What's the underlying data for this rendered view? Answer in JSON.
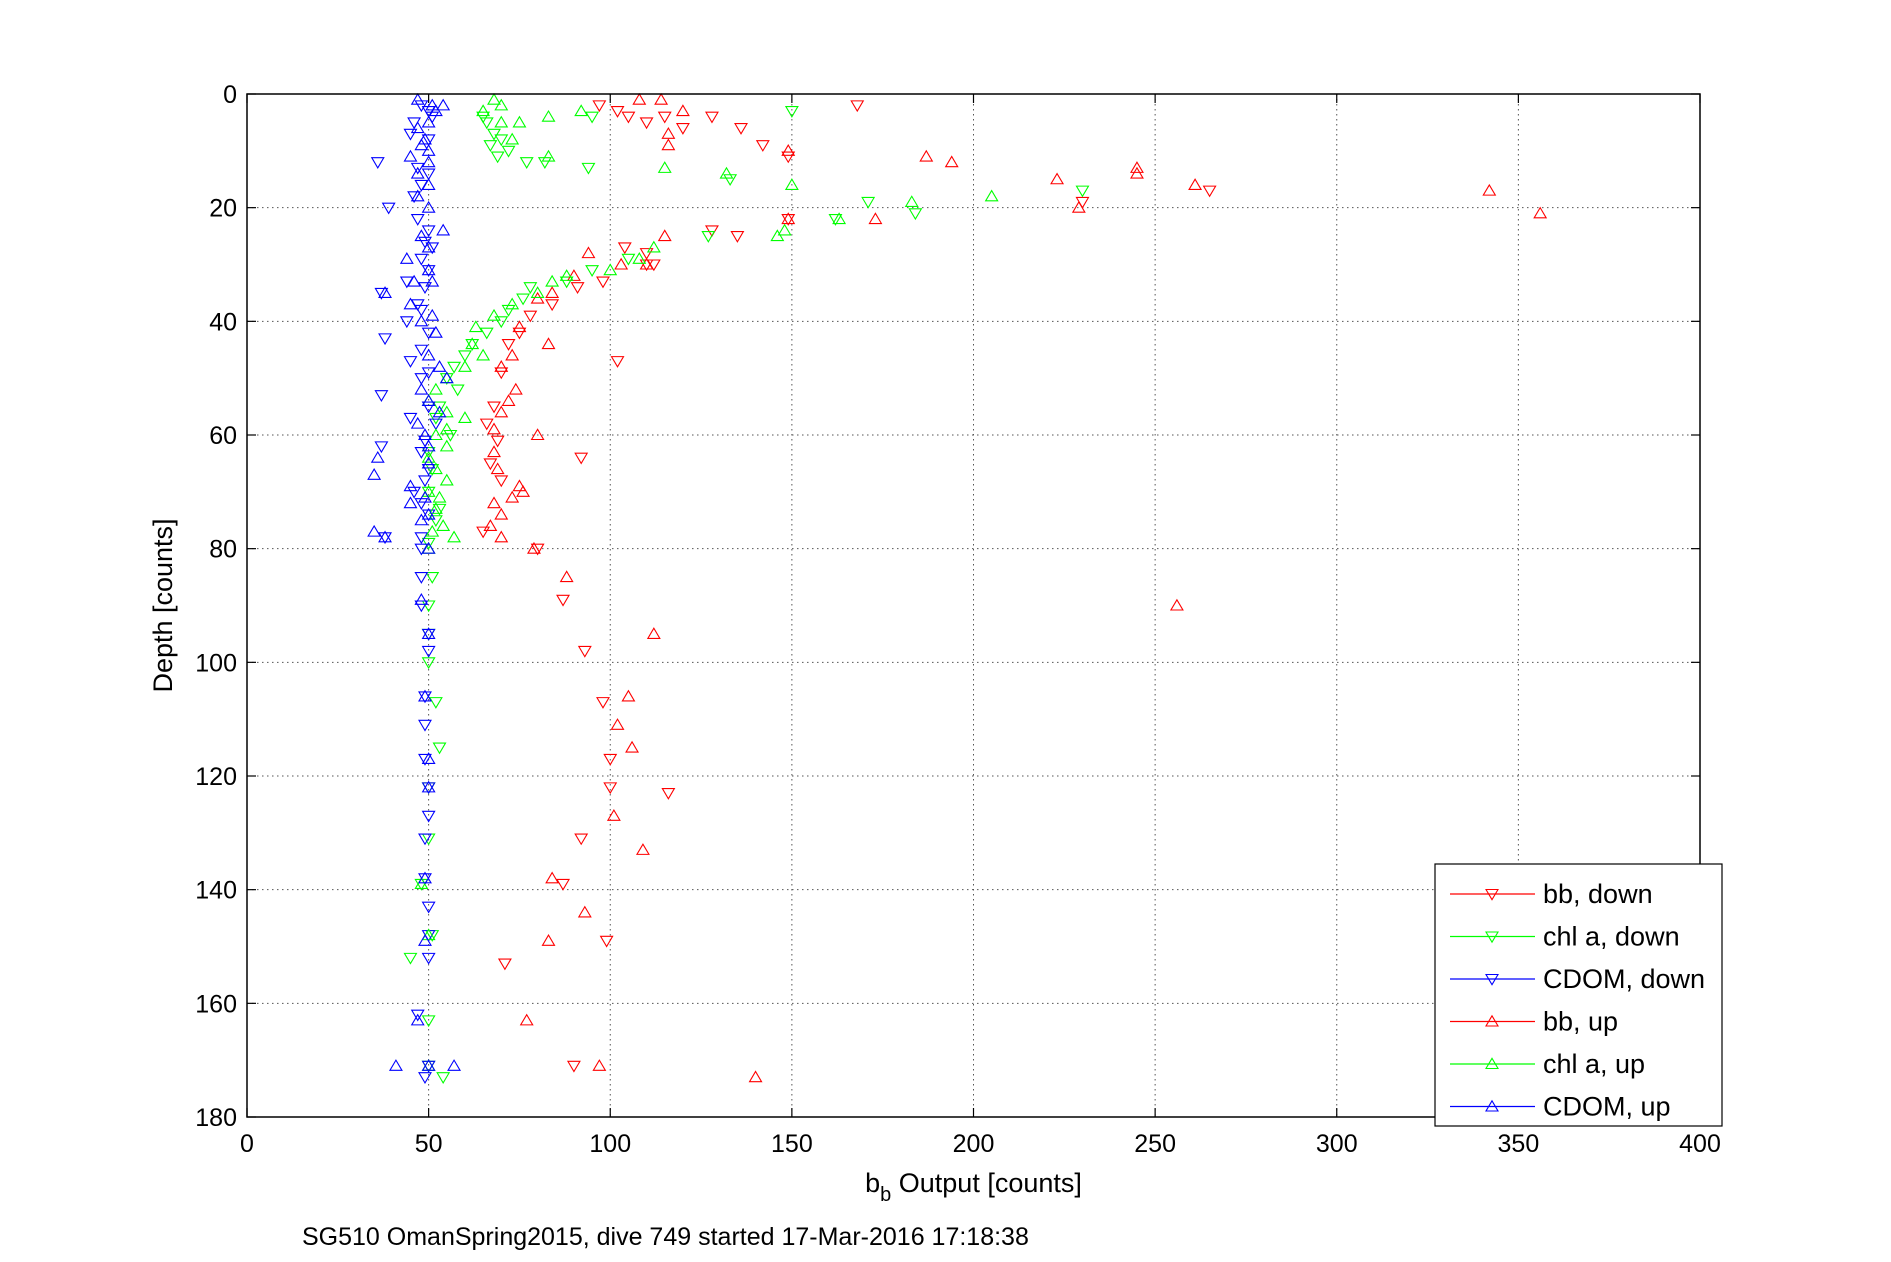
{
  "chart_data": {
    "type": "scatter",
    "title": "",
    "xlabel": "b",
    "xlabel_sub": "b",
    "xlabel_rest": " Output [counts]",
    "ylabel": "Depth [counts]",
    "caption": "SG510 OmanSpring2015, dive 749 started 17-Mar-2016 17:18:38",
    "xlim": [
      0,
      400
    ],
    "ylim": [
      0,
      180
    ],
    "y_reversed": true,
    "grid": true,
    "legend_position": "bottom-right",
    "x_ticks": [
      "0",
      "50",
      "100",
      "150",
      "200",
      "250",
      "300",
      "350",
      "400"
    ],
    "y_ticks": [
      "0",
      "20",
      "40",
      "60",
      "80",
      "100",
      "120",
      "140",
      "160",
      "180"
    ],
    "series": [
      {
        "name": "bb, down",
        "color": "#ff0000",
        "marker": "triangle-down",
        "points": [
          [
            97,
            2
          ],
          [
            102,
            3
          ],
          [
            105,
            4
          ],
          [
            110,
            5
          ],
          [
            115,
            4
          ],
          [
            120,
            6
          ],
          [
            128,
            4
          ],
          [
            136,
            6
          ],
          [
            142,
            9
          ],
          [
            149,
            11
          ],
          [
            168,
            2
          ],
          [
            110,
            28
          ],
          [
            104,
            27
          ],
          [
            112,
            30
          ],
          [
            98,
            33
          ],
          [
            91,
            34
          ],
          [
            84,
            37
          ],
          [
            78,
            39
          ],
          [
            75,
            42
          ],
          [
            72,
            44
          ],
          [
            70,
            49
          ],
          [
            68,
            55
          ],
          [
            66,
            58
          ],
          [
            69,
            61
          ],
          [
            67,
            65
          ],
          [
            70,
            68
          ],
          [
            65,
            77
          ],
          [
            80,
            80
          ],
          [
            92,
            64
          ],
          [
            102,
            47
          ],
          [
            98,
            107
          ],
          [
            100,
            117
          ],
          [
            100,
            122
          ],
          [
            92,
            131
          ],
          [
            87,
            139
          ],
          [
            93,
            98
          ],
          [
            87,
            89
          ],
          [
            71,
            153
          ],
          [
            90,
            171
          ],
          [
            99,
            149
          ],
          [
            116,
            123
          ],
          [
            135,
            25
          ],
          [
            128,
            24
          ],
          [
            149,
            22
          ],
          [
            230,
            19
          ],
          [
            265,
            17
          ],
          [
            110,
            30
          ]
        ]
      },
      {
        "name": "chl a, down",
        "color": "#00ff00",
        "marker": "triangle-down",
        "points": [
          [
            65,
            4
          ],
          [
            66,
            5
          ],
          [
            68,
            7
          ],
          [
            70,
            8
          ],
          [
            67,
            9
          ],
          [
            72,
            10
          ],
          [
            69,
            11
          ],
          [
            77,
            12
          ],
          [
            150,
            3
          ],
          [
            95,
            4
          ],
          [
            82,
            12
          ],
          [
            94,
            13
          ],
          [
            133,
            15
          ],
          [
            230,
            17
          ],
          [
            171,
            19
          ],
          [
            162,
            22
          ],
          [
            184,
            21
          ],
          [
            127,
            25
          ],
          [
            105,
            29
          ],
          [
            95,
            31
          ],
          [
            88,
            33
          ],
          [
            78,
            34
          ],
          [
            76,
            36
          ],
          [
            72,
            38
          ],
          [
            70,
            40
          ],
          [
            66,
            42
          ],
          [
            62,
            44
          ],
          [
            60,
            46
          ],
          [
            57,
            48
          ],
          [
            55,
            50
          ],
          [
            58,
            52
          ],
          [
            53,
            55
          ],
          [
            52,
            57
          ],
          [
            56,
            60
          ],
          [
            50,
            63
          ],
          [
            51,
            66
          ],
          [
            50,
            70
          ],
          [
            53,
            73
          ],
          [
            52,
            75
          ],
          [
            50,
            79
          ],
          [
            51,
            85
          ],
          [
            50,
            90
          ],
          [
            50,
            95
          ],
          [
            50,
            100
          ],
          [
            52,
            107
          ],
          [
            53,
            115
          ],
          [
            50,
            122
          ],
          [
            50,
            131
          ],
          [
            48,
            139
          ],
          [
            51,
            148
          ],
          [
            45,
            152
          ],
          [
            50,
            163
          ],
          [
            50,
            171
          ],
          [
            54,
            173
          ]
        ]
      },
      {
        "name": "CDOM, down",
        "color": "#0000ff",
        "marker": "triangle-down",
        "points": [
          [
            48,
            2
          ],
          [
            50,
            3
          ],
          [
            51,
            4
          ],
          [
            46,
            5
          ],
          [
            45,
            7
          ],
          [
            50,
            8
          ],
          [
            36,
            12
          ],
          [
            47,
            13
          ],
          [
            50,
            14
          ],
          [
            48,
            16
          ],
          [
            46,
            18
          ],
          [
            39,
            20
          ],
          [
            47,
            22
          ],
          [
            50,
            24
          ],
          [
            49,
            26
          ],
          [
            51,
            27
          ],
          [
            48,
            29
          ],
          [
            50,
            31
          ],
          [
            44,
            33
          ],
          [
            49,
            34
          ],
          [
            37,
            35
          ],
          [
            47,
            37
          ],
          [
            48,
            38
          ],
          [
            44,
            40
          ],
          [
            50,
            42
          ],
          [
            38,
            43
          ],
          [
            48,
            45
          ],
          [
            45,
            47
          ],
          [
            50,
            49
          ],
          [
            48,
            50
          ],
          [
            37,
            53
          ],
          [
            50,
            55
          ],
          [
            45,
            57
          ],
          [
            52,
            58
          ],
          [
            49,
            61
          ],
          [
            37,
            62
          ],
          [
            48,
            63
          ],
          [
            50,
            66
          ],
          [
            49,
            68
          ],
          [
            46,
            70
          ],
          [
            48,
            72
          ],
          [
            50,
            74
          ],
          [
            48,
            78
          ],
          [
            38,
            78
          ],
          [
            48,
            80
          ],
          [
            48,
            85
          ],
          [
            48,
            90
          ],
          [
            50,
            95
          ],
          [
            50,
            98
          ],
          [
            49,
            106
          ],
          [
            49,
            111
          ],
          [
            49,
            117
          ],
          [
            50,
            122
          ],
          [
            50,
            127
          ],
          [
            49,
            131
          ],
          [
            49,
            138
          ],
          [
            50,
            143
          ],
          [
            50,
            148
          ],
          [
            50,
            152
          ],
          [
            47,
            162
          ],
          [
            50,
            171
          ],
          [
            49,
            173
          ]
        ]
      },
      {
        "name": "bb, up",
        "color": "#ff0000",
        "marker": "triangle-up",
        "points": [
          [
            108,
            1
          ],
          [
            114,
            1
          ],
          [
            120,
            3
          ],
          [
            116,
            7
          ],
          [
            116,
            9
          ],
          [
            149,
            10
          ],
          [
            187,
            11
          ],
          [
            194,
            12
          ],
          [
            223,
            15
          ],
          [
            245,
            13
          ],
          [
            245,
            14
          ],
          [
            261,
            16
          ],
          [
            342,
            17
          ],
          [
            356,
            21
          ],
          [
            229,
            20
          ],
          [
            173,
            22
          ],
          [
            149,
            22
          ],
          [
            115,
            25
          ],
          [
            94,
            28
          ],
          [
            110,
            30
          ],
          [
            103,
            30
          ],
          [
            90,
            32
          ],
          [
            84,
            35
          ],
          [
            80,
            36
          ],
          [
            75,
            41
          ],
          [
            83,
            44
          ],
          [
            73,
            46
          ],
          [
            70,
            48
          ],
          [
            74,
            52
          ],
          [
            72,
            54
          ],
          [
            70,
            56
          ],
          [
            68,
            59
          ],
          [
            80,
            60
          ],
          [
            68,
            63
          ],
          [
            69,
            66
          ],
          [
            75,
            69
          ],
          [
            68,
            72
          ],
          [
            70,
            74
          ],
          [
            67,
            76
          ],
          [
            70,
            78
          ],
          [
            79,
            80
          ],
          [
            88,
            85
          ],
          [
            112,
            95
          ],
          [
            105,
            106
          ],
          [
            102,
            111
          ],
          [
            106,
            115
          ],
          [
            101,
            127
          ],
          [
            109,
            133
          ],
          [
            84,
            138
          ],
          [
            93,
            144
          ],
          [
            83,
            149
          ],
          [
            77,
            163
          ],
          [
            97,
            171
          ],
          [
            140,
            173
          ],
          [
            256,
            90
          ],
          [
            76,
            70
          ],
          [
            73,
            71
          ]
        ]
      },
      {
        "name": "chl a, up",
        "color": "#00ff00",
        "marker": "triangle-up",
        "points": [
          [
            68,
            1
          ],
          [
            70,
            2
          ],
          [
            65,
            3
          ],
          [
            70,
            5
          ],
          [
            75,
            5
          ],
          [
            83,
            4
          ],
          [
            92,
            3
          ],
          [
            83,
            11
          ],
          [
            73,
            8
          ],
          [
            115,
            13
          ],
          [
            132,
            14
          ],
          [
            150,
            16
          ],
          [
            205,
            18
          ],
          [
            183,
            19
          ],
          [
            163,
            22
          ],
          [
            148,
            24
          ],
          [
            146,
            25
          ],
          [
            112,
            27
          ],
          [
            108,
            29
          ],
          [
            100,
            31
          ],
          [
            88,
            32
          ],
          [
            84,
            33
          ],
          [
            80,
            35
          ],
          [
            73,
            37
          ],
          [
            68,
            39
          ],
          [
            63,
            41
          ],
          [
            62,
            44
          ],
          [
            65,
            46
          ],
          [
            60,
            48
          ],
          [
            55,
            50
          ],
          [
            52,
            52
          ],
          [
            50,
            54
          ],
          [
            55,
            56
          ],
          [
            60,
            57
          ],
          [
            55,
            59
          ],
          [
            52,
            60
          ],
          [
            55,
            62
          ],
          [
            50,
            64
          ],
          [
            52,
            66
          ],
          [
            55,
            68
          ],
          [
            50,
            70
          ],
          [
            53,
            71
          ],
          [
            52,
            73
          ],
          [
            54,
            76
          ],
          [
            51,
            77
          ],
          [
            57,
            78
          ],
          [
            50,
            80
          ],
          [
            48,
            139
          ],
          [
            50,
            148
          ],
          [
            50,
            171
          ]
        ]
      },
      {
        "name": "CDOM, up",
        "color": "#0000ff",
        "marker": "triangle-up",
        "points": [
          [
            47,
            1
          ],
          [
            51,
            2
          ],
          [
            52,
            3
          ],
          [
            54,
            2
          ],
          [
            50,
            5
          ],
          [
            47,
            6
          ],
          [
            49,
            8
          ],
          [
            48,
            9
          ],
          [
            50,
            10
          ],
          [
            45,
            11
          ],
          [
            50,
            12
          ],
          [
            47,
            14
          ],
          [
            50,
            16
          ],
          [
            47,
            18
          ],
          [
            50,
            20
          ],
          [
            54,
            24
          ],
          [
            48,
            25
          ],
          [
            50,
            27
          ],
          [
            44,
            29
          ],
          [
            50,
            31
          ],
          [
            51,
            33
          ],
          [
            46,
            33
          ],
          [
            38,
            35
          ],
          [
            45,
            37
          ],
          [
            51,
            39
          ],
          [
            48,
            40
          ],
          [
            52,
            42
          ],
          [
            50,
            46
          ],
          [
            53,
            48
          ],
          [
            55,
            50
          ],
          [
            48,
            52
          ],
          [
            50,
            54
          ],
          [
            53,
            56
          ],
          [
            47,
            58
          ],
          [
            49,
            60
          ],
          [
            50,
            62
          ],
          [
            36,
            64
          ],
          [
            50,
            65
          ],
          [
            35,
            67
          ],
          [
            45,
            69
          ],
          [
            49,
            71
          ],
          [
            45,
            72
          ],
          [
            50,
            74
          ],
          [
            48,
            75
          ],
          [
            35,
            77
          ],
          [
            38,
            78
          ],
          [
            50,
            80
          ],
          [
            48,
            89
          ],
          [
            50,
            95
          ],
          [
            49,
            106
          ],
          [
            50,
            117
          ],
          [
            50,
            122
          ],
          [
            49,
            138
          ],
          [
            49,
            149
          ],
          [
            47,
            163
          ],
          [
            41,
            171
          ],
          [
            57,
            171
          ],
          [
            50,
            171
          ]
        ]
      }
    ]
  }
}
